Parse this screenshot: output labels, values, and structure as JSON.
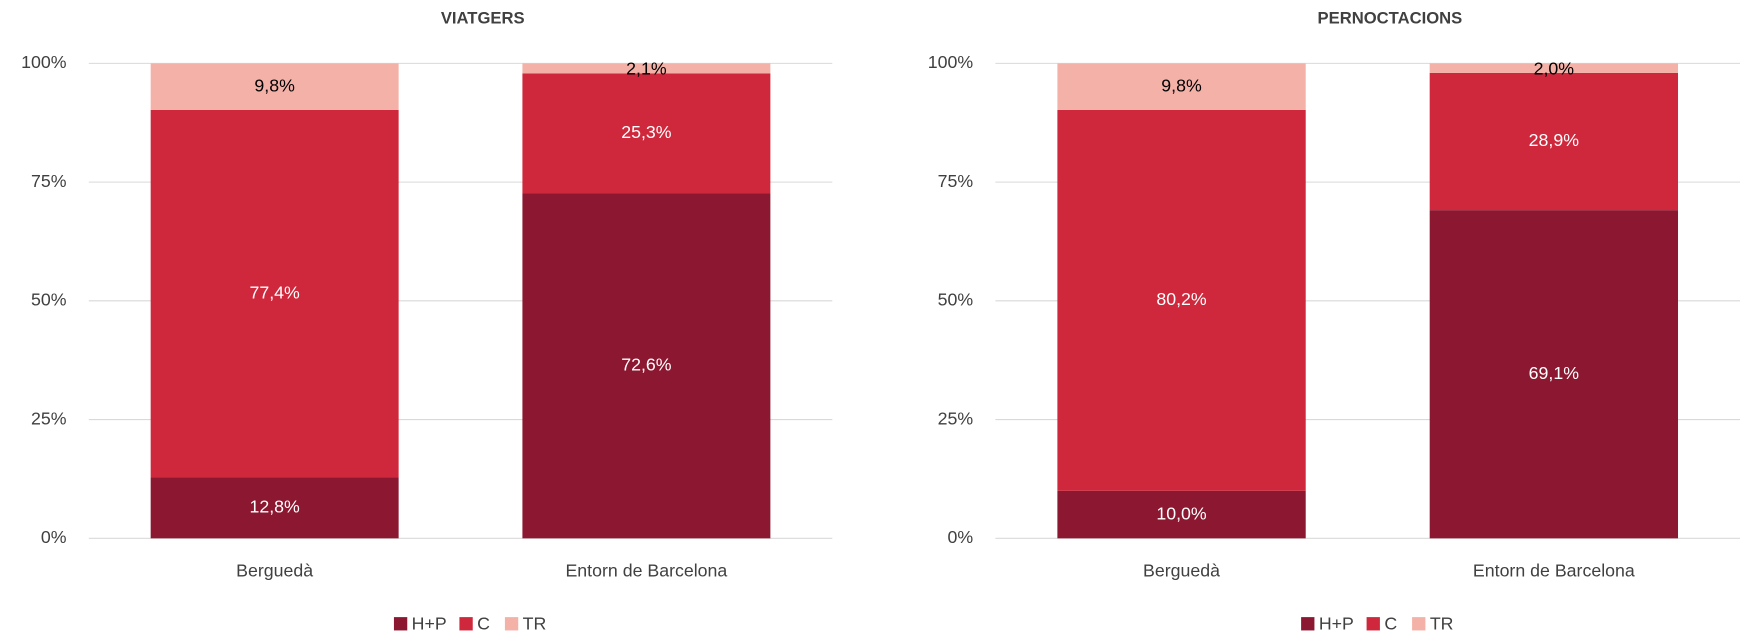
{
  "chart_data": [
    {
      "type": "bar",
      "stacked": true,
      "title": "VIATGERS",
      "categories": [
        "Berguedà",
        "Entorn de Barcelona"
      ],
      "series": [
        {
          "name": "H+P",
          "color": "#8b1730",
          "label_color": "#ffffff",
          "values": [
            12.8,
            72.6
          ],
          "value_labels": [
            "12,8%",
            "72,6%"
          ]
        },
        {
          "name": "C",
          "color": "#cf273b",
          "label_color": "#ffffff",
          "values": [
            77.4,
            25.3
          ],
          "value_labels": [
            "77,4%",
            "25,3%"
          ]
        },
        {
          "name": "TR",
          "color": "#f4b1a8",
          "label_color": "#000000",
          "values": [
            9.8,
            2.1
          ],
          "value_labels": [
            "9,8%",
            "2,1%"
          ]
        }
      ],
      "ylim": [
        0,
        100
      ],
      "yticks": [
        {
          "value": 0,
          "label": "0%"
        },
        {
          "value": 25,
          "label": "25%"
        },
        {
          "value": 50,
          "label": "50%"
        },
        {
          "value": 75,
          "label": "75%"
        },
        {
          "value": 100,
          "label": "100%"
        }
      ],
      "grid": true,
      "legend": "bottom"
    },
    {
      "type": "bar",
      "stacked": true,
      "title": "PERNOCTACIONS",
      "categories": [
        "Berguedà",
        "Entorn de Barcelona"
      ],
      "series": [
        {
          "name": "H+P",
          "color": "#8b1730",
          "label_color": "#ffffff",
          "values": [
            10.0,
            69.1
          ],
          "value_labels": [
            "10,0%",
            "69,1%"
          ]
        },
        {
          "name": "C",
          "color": "#cf273b",
          "label_color": "#ffffff",
          "values": [
            80.2,
            28.9
          ],
          "value_labels": [
            "80,2%",
            "28,9%"
          ]
        },
        {
          "name": "TR",
          "color": "#f4b1a8",
          "label_color": "#000000",
          "values": [
            9.8,
            2.0
          ],
          "value_labels": [
            "9,8%",
            "2,0%"
          ]
        }
      ],
      "ylim": [
        0,
        100
      ],
      "yticks": [
        {
          "value": 0,
          "label": "0%"
        },
        {
          "value": 25,
          "label": "25%"
        },
        {
          "value": 50,
          "label": "50%"
        },
        {
          "value": 75,
          "label": "75%"
        },
        {
          "value": 100,
          "label": "100%"
        }
      ],
      "grid": true,
      "legend": "bottom"
    }
  ]
}
